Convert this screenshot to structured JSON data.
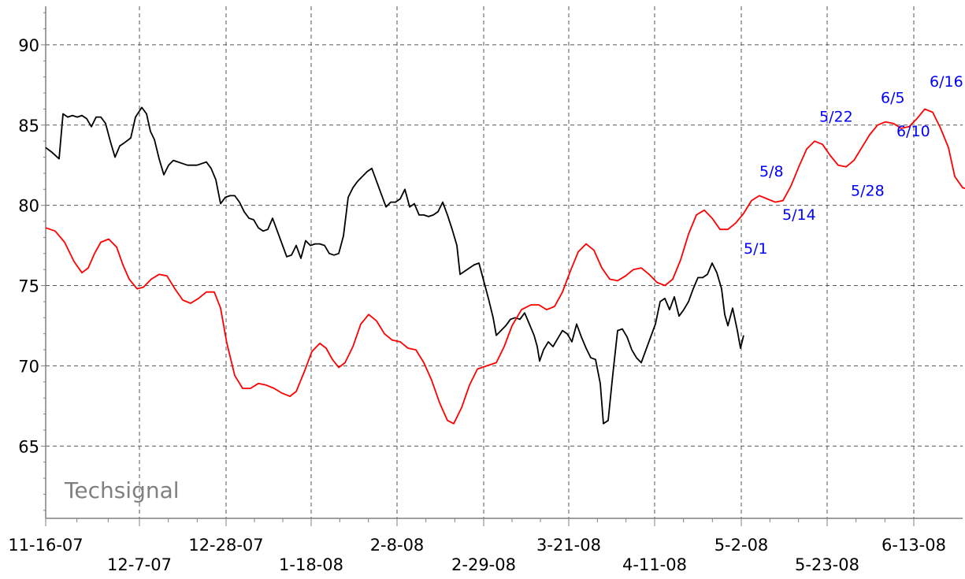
{
  "watermark": "Techsignal",
  "chart_data": {
    "type": "line",
    "y_ticks": [
      65,
      70,
      75,
      80,
      85,
      90
    ],
    "y_range": [
      60.5,
      92.4
    ],
    "x_range": [
      0,
      1158
    ],
    "x_ticks": [
      {
        "label": "11-16-07",
        "x": 0,
        "row": 0
      },
      {
        "label": "12-7-07",
        "x": 119,
        "row": 1
      },
      {
        "label": "12-28-07",
        "x": 229,
        "row": 0
      },
      {
        "label": "1-18-08",
        "x": 337,
        "row": 1
      },
      {
        "label": "2-8-08",
        "x": 446,
        "row": 0
      },
      {
        "label": "2-29-08",
        "x": 556,
        "row": 1
      },
      {
        "label": "3-21-08",
        "x": 664,
        "row": 0
      },
      {
        "label": "4-11-08",
        "x": 773,
        "row": 1
      },
      {
        "label": "5-2-08",
        "x": 883,
        "row": 0
      },
      {
        "label": "5-23-08",
        "x": 992,
        "row": 1
      },
      {
        "label": "6-13-08",
        "x": 1102,
        "row": 0
      }
    ],
    "grid": true,
    "series": [
      {
        "color": "#000000",
        "points": [
          [
            0,
            83.6
          ],
          [
            8,
            83.3
          ],
          [
            17,
            82.9
          ],
          [
            22,
            85.7
          ],
          [
            28,
            85.5
          ],
          [
            34,
            85.6
          ],
          [
            40,
            85.5
          ],
          [
            46,
            85.6
          ],
          [
            52,
            85.4
          ],
          [
            58,
            84.9
          ],
          [
            64,
            85.5
          ],
          [
            70,
            85.5
          ],
          [
            76,
            85.1
          ],
          [
            82,
            84.0
          ],
          [
            88,
            83.0
          ],
          [
            94,
            83.7
          ],
          [
            100,
            83.9
          ],
          [
            108,
            84.2
          ],
          [
            114,
            85.5
          ],
          [
            122,
            86.1
          ],
          [
            128,
            85.7
          ],
          [
            133,
            84.6
          ],
          [
            138,
            84.1
          ],
          [
            144,
            82.9
          ],
          [
            150,
            81.9
          ],
          [
            156,
            82.5
          ],
          [
            162,
            82.8
          ],
          [
            168,
            82.7
          ],
          [
            174,
            82.6
          ],
          [
            180,
            82.5
          ],
          [
            186,
            82.5
          ],
          [
            192,
            82.5
          ],
          [
            198,
            82.6
          ],
          [
            204,
            82.7
          ],
          [
            210,
            82.3
          ],
          [
            216,
            81.6
          ],
          [
            222,
            80.1
          ],
          [
            228,
            80.5
          ],
          [
            234,
            80.6
          ],
          [
            240,
            80.6
          ],
          [
            246,
            80.2
          ],
          [
            252,
            79.6
          ],
          [
            258,
            79.2
          ],
          [
            264,
            79.1
          ],
          [
            270,
            78.6
          ],
          [
            276,
            78.4
          ],
          [
            282,
            78.5
          ],
          [
            288,
            79.2
          ],
          [
            294,
            78.4
          ],
          [
            300,
            77.6
          ],
          [
            306,
            76.8
          ],
          [
            312,
            76.9
          ],
          [
            318,
            77.5
          ],
          [
            324,
            76.7
          ],
          [
            330,
            77.8
          ],
          [
            336,
            77.5
          ],
          [
            342,
            77.6
          ],
          [
            348,
            77.6
          ],
          [
            354,
            77.5
          ],
          [
            360,
            77.0
          ],
          [
            366,
            76.9
          ],
          [
            372,
            77.0
          ],
          [
            378,
            78.1
          ],
          [
            384,
            80.5
          ],
          [
            390,
            81.1
          ],
          [
            396,
            81.5
          ],
          [
            402,
            81.8
          ],
          [
            408,
            82.1
          ],
          [
            414,
            82.3
          ],
          [
            420,
            81.5
          ],
          [
            426,
            80.7
          ],
          [
            432,
            79.9
          ],
          [
            438,
            80.2
          ],
          [
            444,
            80.2
          ],
          [
            450,
            80.4
          ],
          [
            456,
            81.0
          ],
          [
            462,
            79.9
          ],
          [
            468,
            80.1
          ],
          [
            474,
            79.4
          ],
          [
            480,
            79.4
          ],
          [
            486,
            79.3
          ],
          [
            492,
            79.4
          ],
          [
            498,
            79.6
          ],
          [
            504,
            80.2
          ],
          [
            510,
            79.4
          ],
          [
            516,
            78.5
          ],
          [
            522,
            77.5
          ],
          [
            526,
            75.7
          ],
          [
            532,
            75.9
          ],
          [
            538,
            76.1
          ],
          [
            544,
            76.3
          ],
          [
            550,
            76.4
          ],
          [
            556,
            75.3
          ],
          [
            562,
            74.2
          ],
          [
            568,
            73.0
          ],
          [
            572,
            71.9
          ],
          [
            578,
            72.2
          ],
          [
            584,
            72.5
          ],
          [
            590,
            72.9
          ],
          [
            596,
            73.0
          ],
          [
            602,
            72.9
          ],
          [
            608,
            73.3
          ],
          [
            614,
            72.6
          ],
          [
            620,
            71.9
          ],
          [
            624,
            71.2
          ],
          [
            627,
            70.3
          ],
          [
            632,
            71.0
          ],
          [
            638,
            71.5
          ],
          [
            644,
            71.2
          ],
          [
            650,
            71.7
          ],
          [
            656,
            72.2
          ],
          [
            662,
            72.0
          ],
          [
            668,
            71.5
          ],
          [
            674,
            72.6
          ],
          [
            680,
            71.8
          ],
          [
            686,
            71.1
          ],
          [
            692,
            70.5
          ],
          [
            698,
            70.4
          ],
          [
            704,
            68.9
          ],
          [
            708,
            66.4
          ],
          [
            714,
            66.6
          ],
          [
            720,
            69.5
          ],
          [
            726,
            72.2
          ],
          [
            732,
            72.3
          ],
          [
            738,
            71.8
          ],
          [
            744,
            71.0
          ],
          [
            750,
            70.5
          ],
          [
            756,
            70.2
          ],
          [
            762,
            71.0
          ],
          [
            768,
            71.8
          ],
          [
            774,
            72.6
          ],
          [
            780,
            74.0
          ],
          [
            786,
            74.2
          ],
          [
            792,
            73.5
          ],
          [
            798,
            74.3
          ],
          [
            804,
            73.1
          ],
          [
            810,
            73.5
          ],
          [
            816,
            74.0
          ],
          [
            822,
            74.8
          ],
          [
            828,
            75.5
          ],
          [
            834,
            75.5
          ],
          [
            840,
            75.7
          ],
          [
            846,
            76.4
          ],
          [
            852,
            75.8
          ],
          [
            858,
            74.8
          ],
          [
            862,
            73.2
          ],
          [
            866,
            72.5
          ],
          [
            872,
            73.6
          ],
          [
            878,
            72.2
          ],
          [
            882,
            71.1
          ],
          [
            886,
            71.9
          ]
        ]
      },
      {
        "color": "#ff0000",
        "points": [
          [
            0,
            78.6
          ],
          [
            12,
            78.4
          ],
          [
            24,
            77.7
          ],
          [
            36,
            76.5
          ],
          [
            46,
            75.8
          ],
          [
            54,
            76.1
          ],
          [
            62,
            77.0
          ],
          [
            70,
            77.7
          ],
          [
            80,
            77.9
          ],
          [
            90,
            77.4
          ],
          [
            98,
            76.3
          ],
          [
            106,
            75.4
          ],
          [
            116,
            74.8
          ],
          [
            124,
            74.9
          ],
          [
            134,
            75.4
          ],
          [
            144,
            75.7
          ],
          [
            154,
            75.6
          ],
          [
            164,
            74.8
          ],
          [
            174,
            74.1
          ],
          [
            184,
            73.9
          ],
          [
            194,
            74.2
          ],
          [
            204,
            74.6
          ],
          [
            214,
            74.6
          ],
          [
            222,
            73.6
          ],
          [
            230,
            71.4
          ],
          [
            240,
            69.4
          ],
          [
            250,
            68.6
          ],
          [
            260,
            68.6
          ],
          [
            270,
            68.9
          ],
          [
            280,
            68.8
          ],
          [
            290,
            68.6
          ],
          [
            300,
            68.3
          ],
          [
            310,
            68.1
          ],
          [
            318,
            68.4
          ],
          [
            328,
            69.6
          ],
          [
            338,
            70.9
          ],
          [
            348,
            71.4
          ],
          [
            356,
            71.1
          ],
          [
            364,
            70.4
          ],
          [
            372,
            69.9
          ],
          [
            380,
            70.2
          ],
          [
            390,
            71.2
          ],
          [
            400,
            72.6
          ],
          [
            410,
            73.2
          ],
          [
            420,
            72.8
          ],
          [
            430,
            72.0
          ],
          [
            440,
            71.6
          ],
          [
            450,
            71.5
          ],
          [
            460,
            71.1
          ],
          [
            470,
            71.0
          ],
          [
            480,
            70.2
          ],
          [
            490,
            69.1
          ],
          [
            500,
            67.7
          ],
          [
            510,
            66.6
          ],
          [
            518,
            66.4
          ],
          [
            528,
            67.4
          ],
          [
            538,
            68.8
          ],
          [
            548,
            69.8
          ],
          [
            560,
            70.0
          ],
          [
            572,
            70.2
          ],
          [
            582,
            71.2
          ],
          [
            592,
            72.5
          ],
          [
            604,
            73.5
          ],
          [
            616,
            73.8
          ],
          [
            626,
            73.8
          ],
          [
            636,
            73.5
          ],
          [
            646,
            73.7
          ],
          [
            656,
            74.6
          ],
          [
            666,
            75.9
          ],
          [
            676,
            77.1
          ],
          [
            686,
            77.6
          ],
          [
            696,
            77.2
          ],
          [
            706,
            76.1
          ],
          [
            716,
            75.4
          ],
          [
            726,
            75.3
          ],
          [
            736,
            75.6
          ],
          [
            746,
            76.0
          ],
          [
            756,
            76.1
          ],
          [
            766,
            75.7
          ],
          [
            776,
            75.2
          ],
          [
            786,
            75.0
          ],
          [
            796,
            75.4
          ],
          [
            806,
            76.6
          ],
          [
            816,
            78.2
          ],
          [
            826,
            79.4
          ],
          [
            836,
            79.7
          ],
          [
            846,
            79.2
          ],
          [
            856,
            78.5
          ],
          [
            866,
            78.5
          ],
          [
            876,
            78.9
          ],
          [
            886,
            79.5
          ],
          [
            896,
            80.3
          ],
          [
            906,
            80.6
          ],
          [
            916,
            80.4
          ],
          [
            926,
            80.2
          ],
          [
            936,
            80.3
          ],
          [
            946,
            81.2
          ],
          [
            956,
            82.4
          ],
          [
            966,
            83.5
          ],
          [
            976,
            84.0
          ],
          [
            986,
            83.8
          ],
          [
            996,
            83.1
          ],
          [
            1006,
            82.5
          ],
          [
            1016,
            82.4
          ],
          [
            1026,
            82.8
          ],
          [
            1036,
            83.6
          ],
          [
            1046,
            84.4
          ],
          [
            1056,
            85.0
          ],
          [
            1066,
            85.2
          ],
          [
            1076,
            85.1
          ],
          [
            1086,
            84.8
          ],
          [
            1096,
            84.9
          ],
          [
            1106,
            85.4
          ],
          [
            1116,
            86.0
          ],
          [
            1126,
            85.8
          ],
          [
            1136,
            84.8
          ],
          [
            1146,
            83.6
          ],
          [
            1154,
            81.8
          ],
          [
            1164,
            81.1
          ],
          [
            1172,
            81.0
          ]
        ]
      }
    ],
    "annotations": [
      {
        "text": "5/1",
        "x": 886,
        "y": 77.0,
        "color": "#0000ff"
      },
      {
        "text": "5/8",
        "x": 906,
        "y": 81.8,
        "color": "#0000ff"
      },
      {
        "text": "5/14",
        "x": 935,
        "y": 79.1,
        "color": "#0000ff"
      },
      {
        "text": "5/22",
        "x": 982,
        "y": 85.2,
        "color": "#0000ff"
      },
      {
        "text": "5/28",
        "x": 1022,
        "y": 80.6,
        "color": "#0000ff"
      },
      {
        "text": "6/5",
        "x": 1060,
        "y": 86.4,
        "color": "#0000ff"
      },
      {
        "text": "6/10",
        "x": 1080,
        "y": 84.3,
        "color": "#0000ff"
      },
      {
        "text": "6/16",
        "x": 1122,
        "y": 87.4,
        "color": "#0000ff"
      }
    ],
    "colors": {
      "price": "#000000",
      "signal": "#ff0000",
      "annotation": "#0000ff",
      "grid": "#555555",
      "axis": "#808080"
    }
  }
}
